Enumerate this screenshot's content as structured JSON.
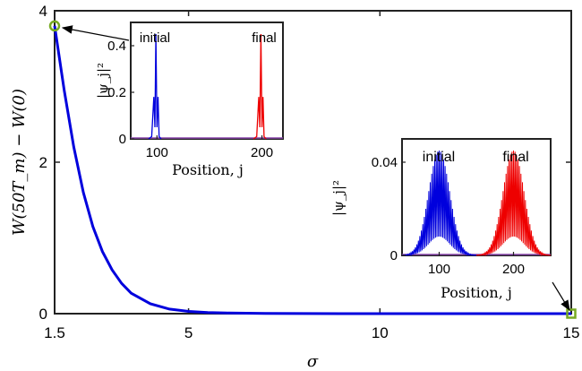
{
  "chart_data": [
    {
      "type": "line",
      "role": "main",
      "xlabel": "σ",
      "ylabel": "W(50T_m) − W(0)",
      "xlim": [
        1.5,
        15
      ],
      "ylim": [
        0,
        4
      ],
      "xticks": [
        "1.5",
        "5",
        "10",
        "15"
      ],
      "xtick_values": [
        1.5,
        5,
        10,
        15
      ],
      "yticks": [
        "0",
        "2",
        "4"
      ],
      "ytick_values": [
        0,
        2,
        4
      ],
      "grid": false,
      "series": [
        {
          "color": "#0000dd",
          "x": [
            1.5,
            1.75,
            2.0,
            2.25,
            2.5,
            2.75,
            3.0,
            3.25,
            3.5,
            4.0,
            4.5,
            5.0,
            5.5,
            6.0,
            7.0,
            8.0,
            9.0,
            10.0,
            11.0,
            12.0,
            13.0,
            14.0,
            15.0
          ],
          "y": [
            3.8,
            2.95,
            2.2,
            1.6,
            1.15,
            0.82,
            0.58,
            0.4,
            0.27,
            0.13,
            0.06,
            0.03,
            0.015,
            0.008,
            0.003,
            0.001,
            0.0,
            0.0,
            0.0,
            0.0,
            0.0,
            0.0,
            0.0
          ]
        }
      ],
      "markers": [
        {
          "x": 1.5,
          "y": 3.8,
          "shape": "circle",
          "color": "#77aa22"
        },
        {
          "x": 15,
          "y": 0.0,
          "shape": "square",
          "color": "#77aa22"
        }
      ]
    },
    {
      "type": "line",
      "role": "inset-top-left",
      "xlabel": "Position, j",
      "ylabel": "|ψ_j|²",
      "xlim": [
        75,
        220
      ],
      "ylim": [
        0,
        0.5
      ],
      "xticks": [
        "100",
        "200"
      ],
      "xtick_values": [
        100,
        200
      ],
      "yticks": [
        "0",
        "0.2",
        "0.4"
      ],
      "ytick_values": [
        0,
        0.2,
        0.4
      ],
      "annotations": [
        "initial",
        "final"
      ],
      "series": [
        {
          "color": "#0000dd",
          "x": [
            92,
            95,
            97,
            98,
            99,
            100,
            101,
            102,
            104
          ],
          "y": [
            0,
            0.01,
            0.18,
            0.05,
            0.45,
            0.05,
            0.18,
            0.01,
            0
          ]
        },
        {
          "color": "#ee0000",
          "x": [
            192,
            195,
            197,
            198,
            199,
            200,
            201,
            202,
            204
          ],
          "y": [
            0,
            0.01,
            0.18,
            0.05,
            0.45,
            0.05,
            0.18,
            0.01,
            0
          ]
        }
      ]
    },
    {
      "type": "line",
      "role": "inset-bottom-right",
      "xlabel": "Position, j",
      "ylabel": "|ψ_j|²",
      "xlim": [
        50,
        250
      ],
      "ylim": [
        0,
        0.05
      ],
      "xticks": [
        "100",
        "200"
      ],
      "xtick_values": [
        100,
        200
      ],
      "yticks": [
        "0",
        "0.04"
      ],
      "ytick_values": [
        0,
        0.04
      ],
      "annotations": [
        "initial",
        "final"
      ],
      "series": [
        {
          "color": "#0000dd",
          "center": 100,
          "peak": 0.045,
          "width": 20
        },
        {
          "color": "#ee0000",
          "center": 200,
          "peak": 0.045,
          "width": 20
        }
      ]
    }
  ]
}
